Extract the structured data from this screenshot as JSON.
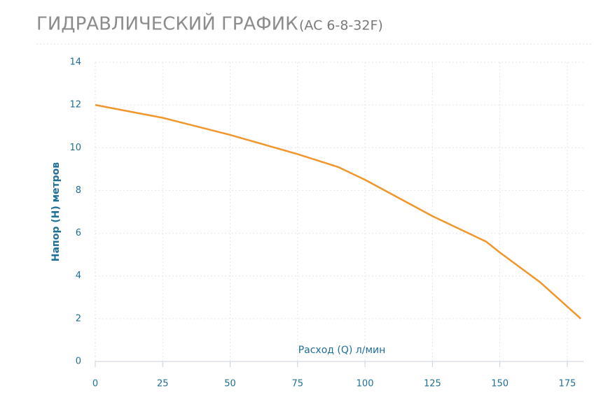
{
  "chart_data": {
    "type": "line",
    "title": "ГИДРАВЛИЧЕСКИЙ ГРАФИК",
    "subtitle": "(AC 6-8-32F)",
    "x_label": "Расход (Q) л/мин",
    "y_label": "Напор (H) метров",
    "x": [
      0,
      25,
      50,
      75,
      90,
      100,
      125,
      145,
      150,
      165,
      180
    ],
    "series": [
      {
        "color": "#f0962a",
        "values": [
          12,
          11.4,
          10.6,
          9.7,
          9.1,
          8.5,
          6.8,
          5.6,
          5.1,
          3.7,
          2
        ]
      }
    ],
    "xlim": [
      0,
      181
    ],
    "xticks": [
      0,
      25,
      50,
      75,
      100,
      125,
      150,
      175
    ],
    "ylim": [
      0,
      14
    ],
    "yticks": [
      0,
      2,
      4,
      6,
      8,
      10,
      12,
      14
    ],
    "grid": true
  }
}
